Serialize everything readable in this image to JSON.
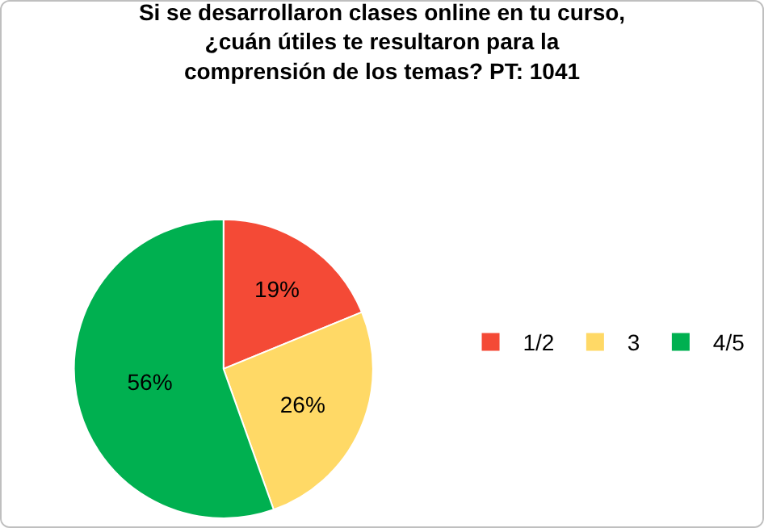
{
  "chart_data": {
    "type": "pie",
    "title": "Si se desarrollaron clases online en tu curso,\n¿cuán útiles te resultaron para la\ncomprensión de los temas? PT: 1041",
    "categories": [
      "1/2",
      "3",
      "4/5"
    ],
    "values": [
      19,
      26,
      56
    ],
    "value_labels": [
      "19%",
      "26%",
      "56%"
    ],
    "colors": [
      "#f44a36",
      "#ffd966",
      "#00b050"
    ],
    "legend": "right"
  }
}
